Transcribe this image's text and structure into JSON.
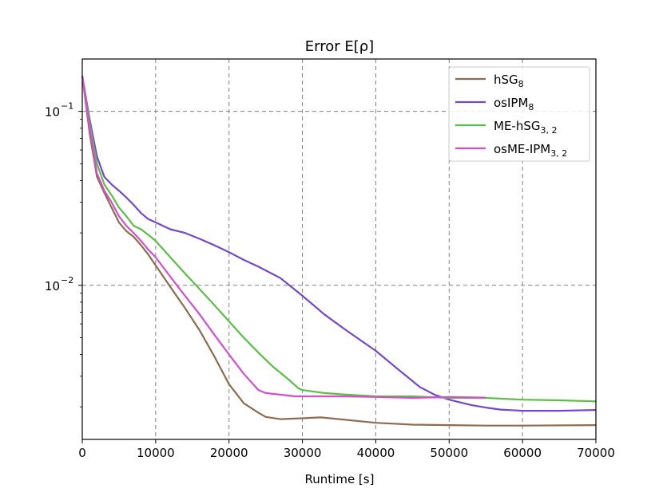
{
  "chart_data": {
    "type": "line",
    "title": "Error E[ρ]",
    "xlabel": "Runtime [s]",
    "ylabel": "",
    "xlim": [
      0,
      70000
    ],
    "ylim": [
      0.0013,
      0.2
    ],
    "yscale": "log",
    "grid": true,
    "legend_position": "top-right",
    "xticks": [
      {
        "value": 0,
        "label": "0"
      },
      {
        "value": 10000,
        "label": "10000"
      },
      {
        "value": 20000,
        "label": "20000"
      },
      {
        "value": 30000,
        "label": "30000"
      },
      {
        "value": 40000,
        "label": "40000"
      },
      {
        "value": 50000,
        "label": "50000"
      },
      {
        "value": 60000,
        "label": "60000"
      },
      {
        "value": 70000,
        "label": "70000"
      }
    ],
    "yticks": [
      {
        "value": 0.1,
        "base": "10",
        "exp": "−1"
      },
      {
        "value": 0.01,
        "base": "10",
        "exp": "−2"
      }
    ],
    "series": [
      {
        "name": "hSG",
        "sub": "8",
        "color": "#8c6d4f",
        "points": [
          [
            0,
            0.16
          ],
          [
            1000,
            0.075
          ],
          [
            2000,
            0.042
          ],
          [
            3000,
            0.034
          ],
          [
            4000,
            0.028
          ],
          [
            5000,
            0.023
          ],
          [
            6000,
            0.0205
          ],
          [
            7000,
            0.019
          ],
          [
            8000,
            0.017
          ],
          [
            9000,
            0.015
          ],
          [
            10000,
            0.013
          ],
          [
            12000,
            0.0098
          ],
          [
            14000,
            0.0074
          ],
          [
            16000,
            0.0055
          ],
          [
            18000,
            0.0039
          ],
          [
            20000,
            0.0027
          ],
          [
            22000,
            0.0021
          ],
          [
            24000,
            0.00185
          ],
          [
            25000,
            0.00175
          ],
          [
            27000,
            0.0017
          ],
          [
            30000,
            0.00172
          ],
          [
            32500,
            0.00174
          ],
          [
            35000,
            0.0017
          ],
          [
            40000,
            0.00162
          ],
          [
            45000,
            0.00158
          ],
          [
            50000,
            0.00157
          ],
          [
            55000,
            0.00156
          ],
          [
            60000,
            0.00156
          ],
          [
            70000,
            0.00157
          ]
        ]
      },
      {
        "name": "osIPM",
        "sub": "8",
        "color": "#7348cc",
        "points": [
          [
            0,
            0.16
          ],
          [
            1000,
            0.09
          ],
          [
            2000,
            0.055
          ],
          [
            3000,
            0.042
          ],
          [
            4000,
            0.038
          ],
          [
            5000,
            0.035
          ],
          [
            6000,
            0.032
          ],
          [
            7000,
            0.029
          ],
          [
            8000,
            0.026
          ],
          [
            9000,
            0.024
          ],
          [
            10000,
            0.023
          ],
          [
            12000,
            0.021
          ],
          [
            14000,
            0.02
          ],
          [
            16000,
            0.0185
          ],
          [
            18000,
            0.017
          ],
          [
            20000,
            0.0155
          ],
          [
            22000,
            0.014
          ],
          [
            24000,
            0.0128
          ],
          [
            27000,
            0.011
          ],
          [
            30000,
            0.0087
          ],
          [
            33000,
            0.0068
          ],
          [
            36000,
            0.0055
          ],
          [
            40000,
            0.0042
          ],
          [
            43000,
            0.0033
          ],
          [
            46000,
            0.0026
          ],
          [
            48000,
            0.00235
          ],
          [
            50000,
            0.0022
          ],
          [
            53000,
            0.00205
          ],
          [
            55000,
            0.00198
          ],
          [
            57000,
            0.00193
          ],
          [
            60000,
            0.0019
          ],
          [
            65000,
            0.0019
          ],
          [
            70000,
            0.00192
          ]
        ]
      },
      {
        "name": "ME-hSG",
        "sub": "3, 2",
        "color": "#5bbf45",
        "points": [
          [
            0,
            0.16
          ],
          [
            1000,
            0.085
          ],
          [
            2000,
            0.05
          ],
          [
            3000,
            0.038
          ],
          [
            4000,
            0.033
          ],
          [
            5000,
            0.028
          ],
          [
            6000,
            0.025
          ],
          [
            7000,
            0.022
          ],
          [
            8000,
            0.021
          ],
          [
            9000,
            0.0195
          ],
          [
            10000,
            0.018
          ],
          [
            12000,
            0.0145
          ],
          [
            14000,
            0.0117
          ],
          [
            16000,
            0.0095
          ],
          [
            18000,
            0.0077
          ],
          [
            20000,
            0.0062
          ],
          [
            22000,
            0.005
          ],
          [
            24000,
            0.0041
          ],
          [
            26000,
            0.0034
          ],
          [
            28000,
            0.0029
          ],
          [
            29500,
            0.00255
          ],
          [
            30000,
            0.0025
          ],
          [
            33000,
            0.0024
          ],
          [
            36000,
            0.00235
          ],
          [
            40000,
            0.0023
          ],
          [
            45000,
            0.0023
          ],
          [
            50000,
            0.00225
          ],
          [
            55000,
            0.00225
          ],
          [
            60000,
            0.0022
          ],
          [
            65000,
            0.00218
          ],
          [
            70000,
            0.00215
          ]
        ]
      },
      {
        "name": "osME-IPM",
        "sub": "3, 2",
        "color": "#d34fd0",
        "points": [
          [
            0,
            0.16
          ],
          [
            1000,
            0.08
          ],
          [
            2000,
            0.044
          ],
          [
            3000,
            0.035
          ],
          [
            4000,
            0.03
          ],
          [
            5000,
            0.025
          ],
          [
            6000,
            0.022
          ],
          [
            7000,
            0.02
          ],
          [
            8000,
            0.018
          ],
          [
            9000,
            0.016
          ],
          [
            10000,
            0.0145
          ],
          [
            12000,
            0.0112
          ],
          [
            14000,
            0.0087
          ],
          [
            16000,
            0.0068
          ],
          [
            18000,
            0.0052
          ],
          [
            20000,
            0.004
          ],
          [
            22000,
            0.0031
          ],
          [
            24000,
            0.0025
          ],
          [
            25000,
            0.0024
          ],
          [
            27000,
            0.00235
          ],
          [
            29000,
            0.0023
          ],
          [
            32000,
            0.0023
          ],
          [
            35000,
            0.0023
          ],
          [
            40000,
            0.00228
          ],
          [
            45000,
            0.00225
          ],
          [
            50000,
            0.00228
          ],
          [
            55000,
            0.00226
          ]
        ]
      }
    ]
  }
}
